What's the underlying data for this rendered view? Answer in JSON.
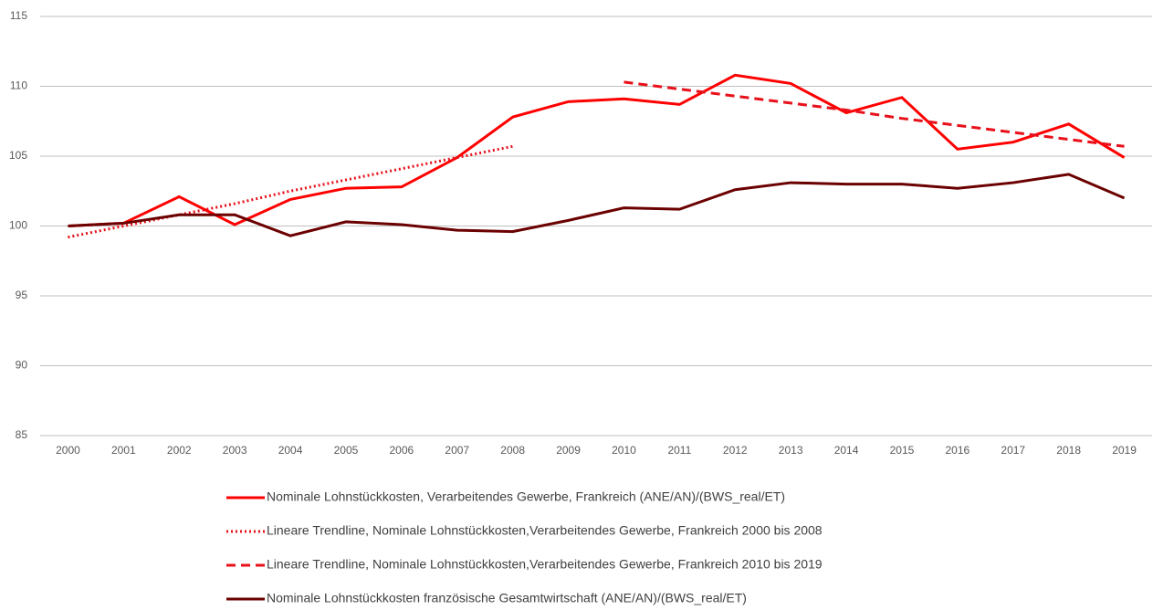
{
  "chart_data": {
    "type": "line",
    "categories": [
      "2000",
      "2001",
      "2002",
      "2003",
      "2004",
      "2005",
      "2006",
      "2007",
      "2008",
      "2009",
      "2010",
      "2011",
      "2012",
      "2013",
      "2014",
      "2015",
      "2016",
      "2017",
      "2018",
      "2019"
    ],
    "ylim": [
      85,
      115
    ],
    "yticks": [
      85,
      90,
      95,
      100,
      105,
      110,
      115
    ],
    "grid": true,
    "series": [
      {
        "name": "Nominale Lohnstückkosten, Verarbeitendes Gewerbe, Frankreich (ANE/AN)/(BWS_real/ET)",
        "color": "#ff0000",
        "dash": "solid",
        "values": [
          100,
          100.2,
          102.1,
          100.1,
          101.9,
          102.7,
          102.8,
          104.9,
          107.8,
          108.9,
          109.1,
          108.7,
          110.8,
          110.2,
          108.1,
          109.2,
          105.5,
          106.0,
          107.3,
          104.9
        ]
      },
      {
        "name": "Lineare Trendline, Nominale Lohnstückkosten,Verarbeitendes Gewerbe, Frankreich 2000 bis 2008",
        "color": "#e8101a",
        "dash": "dotted",
        "values": [
          99.2,
          100.0,
          100.8,
          101.6,
          102.5,
          103.3,
          104.1,
          104.9,
          105.7,
          null,
          null,
          null,
          null,
          null,
          null,
          null,
          null,
          null,
          null,
          null
        ]
      },
      {
        "name": "Lineare Trendline, Nominale Lohnstückkosten,Verarbeitendes Gewerbe, Frankreich 2010 bis 2019",
        "color": "#e8101a",
        "dash": "dashed",
        "values": [
          null,
          null,
          null,
          null,
          null,
          null,
          null,
          null,
          null,
          null,
          110.3,
          109.8,
          109.3,
          108.8,
          108.3,
          107.7,
          107.2,
          106.7,
          106.2,
          105.7
        ]
      },
      {
        "name": "Nominale Lohnstückkosten französische Gesamtwirtschaft (ANE/AN)/(BWS_real/ET)",
        "color": "#6b0000",
        "dash": "solid",
        "values": [
          100,
          100.2,
          100.8,
          100.8,
          99.3,
          100.3,
          100.1,
          99.7,
          99.6,
          100.4,
          101.3,
          101.2,
          102.6,
          103.1,
          103.0,
          103.0,
          102.7,
          103.1,
          103.7,
          102.0
        ]
      }
    ]
  }
}
